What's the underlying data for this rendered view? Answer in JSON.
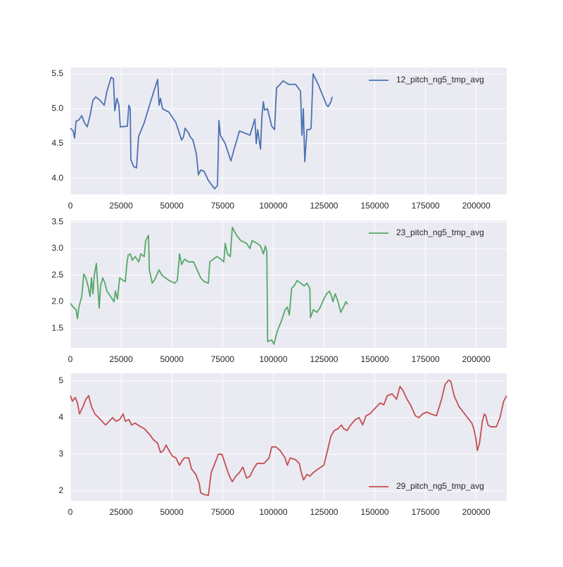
{
  "chart_data": [
    {
      "type": "line",
      "x": [
        0,
        1400,
        2100,
        2800,
        4200,
        5600,
        6900,
        8300,
        9700,
        11100,
        12500,
        14600,
        16700,
        18000,
        20100,
        21200,
        21900,
        22900,
        23900,
        24600,
        28100,
        28800,
        29500,
        29800,
        31200,
        32600,
        33600,
        36400,
        39500,
        43000,
        43700,
        44400,
        45400,
        48600,
        52000,
        54800,
        55800,
        56500,
        58300,
        59000,
        60400,
        62100,
        63100,
        64200,
        65900,
        68000,
        71100,
        72500,
        73200,
        73900,
        76300,
        79100,
        80500,
        83300,
        88500,
        90900,
        91600,
        92300,
        93700,
        94400,
        95100,
        95700,
        97100,
        99200,
        100600,
        101600,
        103400,
        104800,
        107500,
        111000,
        113400,
        114100,
        114800,
        115500,
        116600,
        117900,
        118600,
        119600,
        122100,
        124200,
        126300,
        127000,
        128400,
        129000
      ],
      "series": [
        {
          "name": "12_pitch_ng5_tmp_avg",
          "color": "#4c72b0",
          "values": [
            4.72,
            4.68,
            4.58,
            4.82,
            4.84,
            4.9,
            4.8,
            4.74,
            4.9,
            5.12,
            5.17,
            5.12,
            5.05,
            5.25,
            5.45,
            5.43,
            4.97,
            5.15,
            5.05,
            4.74,
            4.75,
            5.05,
            5.0,
            4.27,
            4.17,
            4.15,
            4.6,
            4.8,
            5.1,
            5.42,
            5.05,
            5.15,
            5.0,
            4.95,
            4.8,
            4.55,
            4.6,
            4.72,
            4.65,
            4.6,
            4.55,
            4.35,
            4.05,
            4.12,
            4.1,
            3.97,
            3.85,
            3.9,
            4.83,
            4.62,
            4.5,
            4.25,
            4.4,
            4.68,
            4.62,
            4.85,
            4.5,
            4.7,
            4.42,
            4.9,
            5.1,
            4.98,
            5.0,
            4.75,
            4.7,
            5.3,
            5.35,
            5.4,
            5.35,
            5.35,
            5.25,
            4.62,
            5.0,
            4.24,
            4.7,
            4.7,
            4.72,
            5.5,
            5.35,
            5.2,
            5.05,
            5.03,
            5.1,
            5.17
          ]
        }
      ],
      "xlim": [
        0,
        215000
      ],
      "xticks": [
        0,
        25000,
        50000,
        75000,
        100000,
        125000,
        150000,
        175000,
        200000
      ],
      "ylim": [
        3.77,
        5.59
      ],
      "yticks": [
        {
          "value": 4,
          "label": "4.0"
        },
        4.5,
        {
          "value": 5,
          "label": "5.0"
        },
        5.5
      ],
      "grid": true,
      "legend": "upper right"
    },
    {
      "type": "line",
      "x": [
        0,
        1400,
        2800,
        3500,
        4200,
        5600,
        6600,
        7600,
        8700,
        9700,
        10400,
        11100,
        11800,
        12800,
        13500,
        14200,
        14900,
        16000,
        17000,
        18000,
        19800,
        21500,
        22200,
        23200,
        24300,
        26000,
        27100,
        27800,
        28500,
        29600,
        30500,
        31900,
        33700,
        34700,
        36400,
        37100,
        38500,
        38900,
        40300,
        41600,
        43700,
        45100,
        46800,
        48600,
        51400,
        52700,
        53800,
        54800,
        56200,
        58300,
        60700,
        62500,
        64200,
        65900,
        68000,
        68700,
        70400,
        72200,
        74200,
        75600,
        76300,
        77400,
        78800,
        79800,
        81900,
        84000,
        86800,
        88500,
        89500,
        92000,
        93700,
        95100,
        96100,
        96800,
        97200,
        99200,
        100300,
        102000,
        104100,
        105800,
        106900,
        107900,
        109000,
        110300,
        111700,
        113500,
        115200,
        116600,
        118000,
        118300,
        119700,
        121500,
        123200,
        124900,
        126300,
        127700,
        128700,
        129400,
        130500,
        131900,
        133200,
        134600,
        135700,
        136700
      ],
      "series": [
        {
          "name": "23_pitch_ng5_tmp_avg",
          "color": "#55a868",
          "values": [
            1.97,
            1.9,
            1.85,
            1.68,
            1.9,
            2.1,
            2.52,
            2.45,
            2.3,
            2.1,
            2.45,
            2.15,
            2.5,
            2.72,
            2.3,
            1.88,
            2.3,
            2.45,
            2.35,
            2.2,
            2.1,
            2.0,
            2.2,
            2.05,
            2.45,
            2.4,
            2.38,
            2.7,
            2.88,
            2.9,
            2.78,
            2.85,
            2.75,
            2.9,
            2.85,
            3.15,
            3.25,
            2.6,
            2.35,
            2.42,
            2.6,
            2.5,
            2.45,
            2.4,
            2.35,
            2.4,
            2.9,
            2.7,
            2.8,
            2.75,
            2.75,
            2.6,
            2.45,
            2.38,
            2.35,
            2.75,
            2.8,
            2.85,
            2.8,
            2.75,
            3.1,
            2.9,
            2.85,
            3.4,
            3.25,
            3.15,
            3.1,
            3.0,
            3.15,
            3.1,
            3.05,
            2.9,
            3.05,
            2.95,
            1.25,
            1.28,
            1.2,
            1.45,
            1.65,
            1.85,
            1.9,
            1.75,
            2.25,
            2.3,
            2.4,
            2.35,
            2.3,
            2.35,
            2.25,
            1.7,
            1.85,
            1.8,
            1.9,
            2.05,
            2.15,
            2.2,
            2.1,
            2.0,
            2.15,
            2.0,
            1.8,
            1.9,
            2.0,
            1.95
          ]
        }
      ],
      "xlim": [
        0,
        215000
      ],
      "xticks": [
        0,
        25000,
        50000,
        75000,
        100000,
        125000,
        150000,
        175000,
        200000
      ],
      "ylim": [
        1.13,
        3.53
      ],
      "yticks": [
        1.5,
        {
          "value": 2,
          "label": "2.0"
        },
        2.5,
        {
          "value": 3,
          "label": "3.0"
        },
        3.5
      ],
      "grid": true,
      "legend": "upper right"
    },
    {
      "type": "line",
      "x": [
        0,
        1000,
        2400,
        3500,
        4500,
        6200,
        7600,
        9000,
        10400,
        12100,
        13900,
        15600,
        17400,
        19100,
        20800,
        22600,
        24300,
        26000,
        27100,
        28800,
        30200,
        31900,
        34700,
        36400,
        38900,
        40900,
        43000,
        44400,
        45800,
        47200,
        48600,
        50300,
        52000,
        53800,
        54800,
        56200,
        58300,
        59700,
        61800,
        63500,
        64200,
        65900,
        68000,
        69400,
        71200,
        72900,
        74700,
        77100,
        78400,
        79800,
        81500,
        83300,
        85000,
        86800,
        88500,
        90200,
        92000,
        95400,
        97900,
        99200,
        101300,
        103400,
        105800,
        106900,
        108300,
        111000,
        112800,
        113800,
        114900,
        116600,
        118000,
        119700,
        122100,
        124900,
        126700,
        128400,
        130100,
        131900,
        133600,
        134600,
        136400,
        138100,
        140500,
        142300,
        144000,
        145700,
        147500,
        149200,
        150900,
        152700,
        154400,
        156200,
        158600,
        160700,
        162400,
        163800,
        165900,
        167600,
        170000,
        171800,
        173500,
        175600,
        177700,
        180400,
        182900,
        184600,
        186300,
        187400,
        189100,
        191500,
        194300,
        196400,
        197800,
        198800,
        199900,
        200500,
        201600,
        203000,
        204000,
        204700,
        205800,
        207200,
        209900,
        211700,
        213500,
        215000
      ],
      "series": [
        {
          "name": "29_pitch_ng5_tmp_avg",
          "color": "#c44e52",
          "values": [
            4.6,
            4.45,
            4.55,
            4.4,
            4.1,
            4.3,
            4.5,
            4.6,
            4.3,
            4.1,
            4.0,
            3.9,
            3.8,
            3.9,
            4.0,
            3.9,
            3.95,
            4.1,
            3.9,
            3.95,
            3.8,
            3.85,
            3.75,
            3.7,
            3.55,
            3.4,
            3.3,
            3.05,
            3.1,
            3.25,
            3.1,
            2.95,
            2.9,
            2.7,
            2.8,
            2.9,
            2.9,
            2.6,
            2.45,
            2.2,
            1.95,
            1.9,
            1.88,
            2.5,
            2.75,
            3.0,
            3.0,
            2.6,
            2.4,
            2.25,
            2.4,
            2.5,
            2.65,
            2.35,
            2.4,
            2.6,
            2.75,
            2.75,
            2.9,
            3.2,
            3.2,
            3.1,
            2.9,
            2.7,
            2.9,
            2.85,
            2.75,
            2.5,
            2.3,
            2.45,
            2.4,
            2.5,
            2.6,
            2.7,
            3.1,
            3.5,
            3.65,
            3.7,
            3.8,
            3.7,
            3.65,
            3.8,
            3.95,
            4.0,
            3.8,
            4.05,
            4.1,
            4.2,
            4.3,
            4.4,
            4.35,
            4.6,
            4.65,
            4.5,
            4.85,
            4.75,
            4.5,
            4.35,
            4.05,
            4.0,
            4.1,
            4.15,
            4.1,
            4.05,
            4.5,
            4.9,
            5.02,
            5.0,
            4.6,
            4.3,
            4.1,
            3.95,
            3.85,
            3.7,
            3.4,
            3.1,
            3.3,
            3.9,
            4.1,
            4.05,
            3.8,
            3.75,
            3.75,
            4.0,
            4.45,
            4.6
          ]
        }
      ],
      "xlim": [
        0,
        215000
      ],
      "xticks": [
        0,
        25000,
        50000,
        75000,
        100000,
        125000,
        150000,
        175000,
        200000
      ],
      "ylim": [
        1.73,
        5.21
      ],
      "yticks": [
        2,
        3,
        4,
        5
      ],
      "grid": true,
      "legend": "lower right"
    }
  ]
}
